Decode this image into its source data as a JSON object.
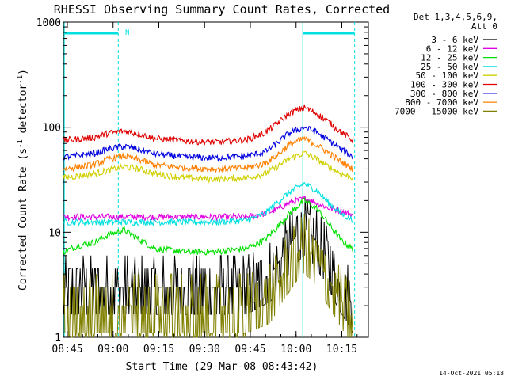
{
  "chart_data": {
    "type": "line",
    "title": "RHESSI Observing Summary Count Rates, Corrected",
    "xlabel": "Start Time (29-Mar-08 08:43:42)",
    "ylabel_main": "Corrected Count Rate (s",
    "ylabel_sup1": "-1",
    "ylabel_mid": " detector",
    "ylabel_sup2": "-1",
    "ylabel_end": ")",
    "yscale": "log",
    "ylim": [
      1,
      1000
    ],
    "xlim_minutes": [
      0,
      100
    ],
    "x_ticks": [
      "08:45",
      "09:00",
      "09:15",
      "09:30",
      "09:45",
      "10:00",
      "10:15"
    ],
    "y_ticks": [
      "1",
      "10",
      "100",
      "1000"
    ],
    "legend_header": [
      "Det 1,3,4,5,6,9,",
      "Att 0"
    ],
    "footer": "14-Oct-2021 05:18",
    "flag_label": "N",
    "x_units": "minutes since 08:43:42",
    "night_intervals": [
      [
        0.3,
        18.0
      ],
      [
        78.5,
        95.5
      ]
    ],
    "series": [
      {
        "name": "3 - 6 keV",
        "color": "#000000",
        "x": [
          0,
          10,
          20,
          30,
          40,
          50,
          60,
          68,
          72,
          76,
          79,
          82,
          86,
          90,
          95
        ],
        "y": [
          3,
          3,
          3,
          3,
          3,
          3,
          3,
          4,
          6,
          9,
          11,
          9,
          6,
          3.5,
          2
        ]
      },
      {
        "name": "6 - 12 keV",
        "color": "#e000e0",
        "x": [
          0,
          10,
          20,
          30,
          40,
          50,
          60,
          66,
          70,
          74,
          79,
          83,
          87,
          91,
          95
        ],
        "y": [
          14,
          14,
          14,
          14,
          14,
          14,
          14,
          15,
          16.5,
          19,
          21,
          19,
          17,
          16,
          14.5
        ]
      },
      {
        "name": "12 - 25 keV",
        "color": "#00e000",
        "x": [
          0,
          5,
          10,
          15,
          20,
          25,
          30,
          40,
          50,
          60,
          66,
          70,
          74,
          79,
          83,
          87,
          91,
          95
        ],
        "y": [
          6.5,
          7.5,
          8,
          9.5,
          10.5,
          8.5,
          7,
          6.5,
          6.5,
          7,
          8.5,
          11,
          15,
          20,
          17,
          12,
          8.5,
          6.8
        ]
      },
      {
        "name": "25 - 50 keV",
        "color": "#00e0e0",
        "x": [
          0,
          10,
          20,
          30,
          40,
          50,
          60,
          66,
          70,
          74,
          79,
          83,
          87,
          91,
          95
        ],
        "y": [
          12.5,
          12.5,
          12.5,
          12.5,
          12.5,
          12.5,
          13,
          15,
          19,
          24,
          29,
          25,
          19,
          15,
          13
        ]
      },
      {
        "name": "50 - 100 keV",
        "color": "#d0d000",
        "x": [
          0,
          10,
          20,
          25,
          30,
          40,
          50,
          60,
          66,
          70,
          74,
          79,
          83,
          87,
          91,
          95
        ],
        "y": [
          33,
          36,
          42,
          40,
          36,
          33,
          32,
          33,
          36,
          42,
          50,
          57,
          50,
          42,
          36,
          33
        ]
      },
      {
        "name": "100 - 300 keV",
        "color": "#e00000",
        "x": [
          0,
          10,
          15,
          20,
          25,
          30,
          40,
          50,
          60,
          66,
          70,
          74,
          79,
          83,
          87,
          91,
          95
        ],
        "y": [
          75,
          80,
          88,
          92,
          86,
          78,
          74,
          72,
          76,
          88,
          108,
          135,
          155,
          135,
          112,
          90,
          75
        ]
      },
      {
        "name": "300 - 800 keV",
        "color": "#0000e0",
        "x": [
          0,
          10,
          15,
          20,
          25,
          30,
          40,
          50,
          60,
          66,
          70,
          74,
          79,
          83,
          87,
          91,
          95
        ],
        "y": [
          52,
          56,
          62,
          66,
          61,
          56,
          52,
          51,
          53,
          58,
          70,
          88,
          100,
          90,
          75,
          62,
          52
        ]
      },
      {
        "name": "800 - 7000 keV",
        "color": "#ff8000",
        "x": [
          0,
          10,
          15,
          20,
          25,
          30,
          40,
          50,
          60,
          66,
          70,
          74,
          79,
          83,
          87,
          91,
          95
        ],
        "y": [
          40,
          44,
          50,
          53,
          49,
          44,
          41,
          40,
          41,
          45,
          54,
          68,
          78,
          68,
          57,
          47,
          40
        ]
      },
      {
        "name": "7000 - 15000 keV",
        "color": "#808000",
        "x": [
          0,
          10,
          20,
          30,
          40,
          50,
          60,
          68,
          72,
          76,
          79,
          82,
          86,
          90,
          95
        ],
        "y": [
          2,
          2,
          2,
          2,
          2,
          2,
          2,
          2.5,
          4,
          6,
          7.5,
          6,
          4,
          2.5,
          1.5
        ]
      }
    ]
  }
}
